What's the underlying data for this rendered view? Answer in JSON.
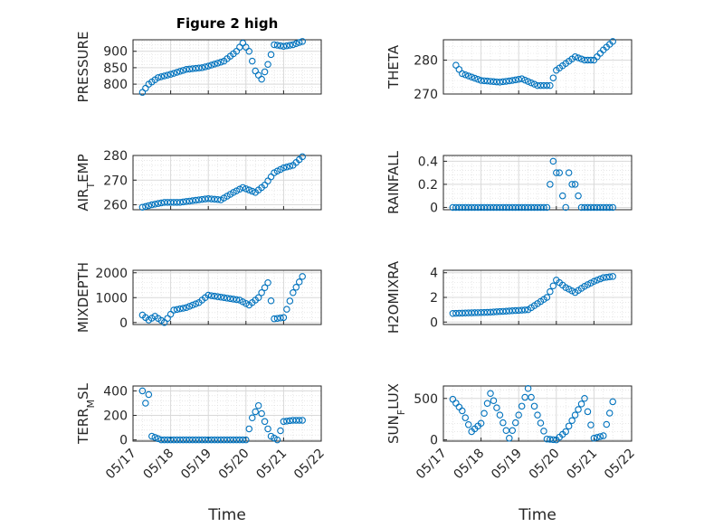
{
  "title": "Figure 2 high",
  "xlabel": "Time",
  "colors": {
    "marker": "#0072BD",
    "grid": "#d9d9d9",
    "axis": "#262626"
  },
  "chart_data": [
    {
      "type": "scatter",
      "name": "PRESSURE",
      "ylabel": "PRESSURE",
      "xlim": [
        "05/17 00:00",
        "05/22 00:00"
      ],
      "ylim": [
        770,
        935
      ],
      "yticks": [
        800,
        850,
        900
      ],
      "ytick_labels": [
        "800",
        "850",
        "900"
      ],
      "x": [
        "05/17 06:00",
        "05/17 10:00",
        "05/17 16:00",
        "05/18 00:00",
        "05/18 10:00",
        "05/18 20:00",
        "05/19 00:00",
        "05/19 10:00",
        "05/19 18:00",
        "05/19 22:00",
        "05/20 02:00",
        "05/20 06:00",
        "05/20 10:00",
        "05/20 14:00",
        "05/20 18:00",
        "05/21 00:00",
        "05/21 06:00",
        "05/21 12:00"
      ],
      "y": [
        775,
        800,
        820,
        830,
        845,
        850,
        855,
        870,
        900,
        925,
        900,
        840,
        815,
        860,
        920,
        915,
        920,
        930
      ]
    },
    {
      "type": "scatter",
      "name": "THETA",
      "ylabel": "THETA",
      "xlim": [
        "05/17 00:00",
        "05/22 00:00"
      ],
      "ylim": [
        270,
        286
      ],
      "yticks": [
        270,
        280
      ],
      "ytick_labels": [
        "270",
        "280"
      ],
      "x": [
        "05/17 08:00",
        "05/17 12:00",
        "05/17 18:00",
        "05/18 00:00",
        "05/18 12:00",
        "05/18 20:00",
        "05/19 02:00",
        "05/19 12:00",
        "05/19 20:00",
        "05/20 00:00",
        "05/20 06:00",
        "05/20 12:00",
        "05/20 18:00",
        "05/21 00:00",
        "05/21 06:00",
        "05/21 12:00"
      ],
      "y": [
        278.5,
        276,
        275,
        274,
        273.5,
        274,
        274.5,
        272.5,
        272.5,
        277,
        279,
        281,
        280,
        280,
        283,
        285.5
      ]
    },
    {
      "type": "scatter",
      "name": "AIR_TEMP",
      "ylabel": "AIR_TEMP",
      "xlim": [
        "05/17 00:00",
        "05/22 00:00"
      ],
      "ylim": [
        258,
        280
      ],
      "yticks": [
        260,
        270,
        280
      ],
      "ytick_labels": [
        "260",
        "270",
        "280"
      ],
      "x": [
        "05/17 06:00",
        "05/17 12:00",
        "05/17 20:00",
        "05/18 06:00",
        "05/18 18:00",
        "05/19 00:00",
        "05/19 08:00",
        "05/19 16:00",
        "05/19 22:00",
        "05/20 06:00",
        "05/20 12:00",
        "05/20 18:00",
        "05/21 00:00",
        "05/21 06:00",
        "05/21 12:00"
      ],
      "y": [
        259,
        260,
        261,
        261,
        262,
        262.5,
        262,
        265,
        267,
        265,
        268,
        273,
        275,
        276,
        279.5
      ]
    },
    {
      "type": "scatter",
      "name": "RAINFALL",
      "ylabel": "RAINFALL",
      "xlim": [
        "05/17 00:00",
        "05/22 00:00"
      ],
      "ylim": [
        -0.02,
        0.45
      ],
      "yticks": [
        0,
        0.2,
        0.4
      ],
      "ytick_labels": [
        "0",
        "0.2",
        "0.4"
      ],
      "x": [
        "05/17 06:00",
        "05/17 18:00",
        "05/18 06:00",
        "05/18 18:00",
        "05/19 06:00",
        "05/19 18:00",
        "05/19 22:00",
        "05/20 00:00",
        "05/20 02:00",
        "05/20 04:00",
        "05/20 06:00",
        "05/20 08:00",
        "05/20 10:00",
        "05/20 12:00",
        "05/20 16:00",
        "05/20 18:00",
        "05/21 00:00",
        "05/21 06:00",
        "05/21 12:00"
      ],
      "y": [
        0,
        0,
        0,
        0,
        0,
        0,
        0.4,
        0.3,
        0.3,
        0.1,
        0,
        0.3,
        0.2,
        0.2,
        0,
        0,
        0,
        0,
        0
      ]
    },
    {
      "type": "scatter",
      "name": "MIXDEPTH",
      "ylabel": "MIXDEPTH",
      "xlim": [
        "05/17 00:00",
        "05/22 00:00"
      ],
      "ylim": [
        -80,
        2100
      ],
      "yticks": [
        0,
        1000,
        2000
      ],
      "ytick_labels": [
        "0",
        "1000",
        "2000"
      ],
      "x": [
        "05/17 06:00",
        "05/17 10:00",
        "05/17 14:00",
        "05/17 20:00",
        "05/18 02:00",
        "05/18 10:00",
        "05/18 18:00",
        "05/19 00:00",
        "05/19 10:00",
        "05/19 20:00",
        "05/20 02:00",
        "05/20 08:00",
        "05/20 14:00",
        "05/20 18:00",
        "05/21 00:00",
        "05/21 06:00",
        "05/21 12:00"
      ],
      "y": [
        300,
        100,
        250,
        0,
        500,
        600,
        800,
        1100,
        1000,
        900,
        700,
        1000,
        1600,
        150,
        200,
        1200,
        1850
      ]
    },
    {
      "type": "scatter",
      "name": "H2OMIXRA",
      "ylabel": "H2OMIXRA",
      "xlim": [
        "05/17 00:00",
        "05/22 00:00"
      ],
      "ylim": [
        -0.2,
        4.2
      ],
      "yticks": [
        0,
        2,
        4
      ],
      "ytick_labels": [
        "0",
        "2",
        "4"
      ],
      "x": [
        "05/17 06:00",
        "05/17 18:00",
        "05/18 06:00",
        "05/18 18:00",
        "05/19 06:00",
        "05/19 18:00",
        "05/20 00:00",
        "05/20 06:00",
        "05/20 12:00",
        "05/20 18:00",
        "05/21 00:00",
        "05/21 06:00",
        "05/21 12:00"
      ],
      "y": [
        0.7,
        0.75,
        0.8,
        0.9,
        1.0,
        2.0,
        3.4,
        2.8,
        2.4,
        2.9,
        3.3,
        3.6,
        3.7
      ]
    },
    {
      "type": "scatter",
      "name": "TERR_MSL",
      "ylabel": "TERR_MSL",
      "xlim": [
        "05/17 00:00",
        "05/22 00:00"
      ],
      "ylim": [
        -10,
        440
      ],
      "yticks": [
        0,
        200,
        400
      ],
      "ytick_labels": [
        "0",
        "200",
        "400"
      ],
      "x": [
        "05/17 06:00",
        "05/17 08:00",
        "05/17 10:00",
        "05/17 12:00",
        "05/17 18:00",
        "05/18 06:00",
        "05/18 18:00",
        "05/19 06:00",
        "05/19 18:00",
        "05/20 00:00",
        "05/20 04:00",
        "05/20 08:00",
        "05/20 12:00",
        "05/20 16:00",
        "05/20 20:00",
        "05/21 00:00",
        "05/21 06:00",
        "05/21 12:00"
      ],
      "y": [
        400,
        300,
        370,
        30,
        0,
        0,
        0,
        0,
        0,
        0,
        180,
        280,
        150,
        30,
        0,
        150,
        160,
        160
      ]
    },
    {
      "type": "scatter",
      "name": "SUN_FLUX",
      "ylabel": "SUN_FLUX",
      "xlim": [
        "05/17 00:00",
        "05/22 00:00"
      ],
      "ylim": [
        -15,
        650
      ],
      "yticks": [
        0,
        500
      ],
      "ytick_labels": [
        "0",
        "500"
      ],
      "x": [
        "05/17 06:00",
        "05/17 12:00",
        "05/17 18:00",
        "05/18 00:00",
        "05/18 06:00",
        "05/18 12:00",
        "05/18 18:00",
        "05/19 00:00",
        "05/19 06:00",
        "05/19 12:00",
        "05/19 18:00",
        "05/20 00:00",
        "05/20 06:00",
        "05/20 12:00",
        "05/20 18:00",
        "05/21 00:00",
        "05/21 06:00",
        "05/21 12:00"
      ],
      "y": [
        490,
        350,
        100,
        200,
        560,
        300,
        20,
        300,
        620,
        300,
        10,
        0,
        100,
        300,
        500,
        20,
        50,
        460
      ]
    }
  ],
  "xticks": [
    "05/17",
    "05/18",
    "05/19",
    "05/20",
    "05/21",
    "05/22"
  ]
}
